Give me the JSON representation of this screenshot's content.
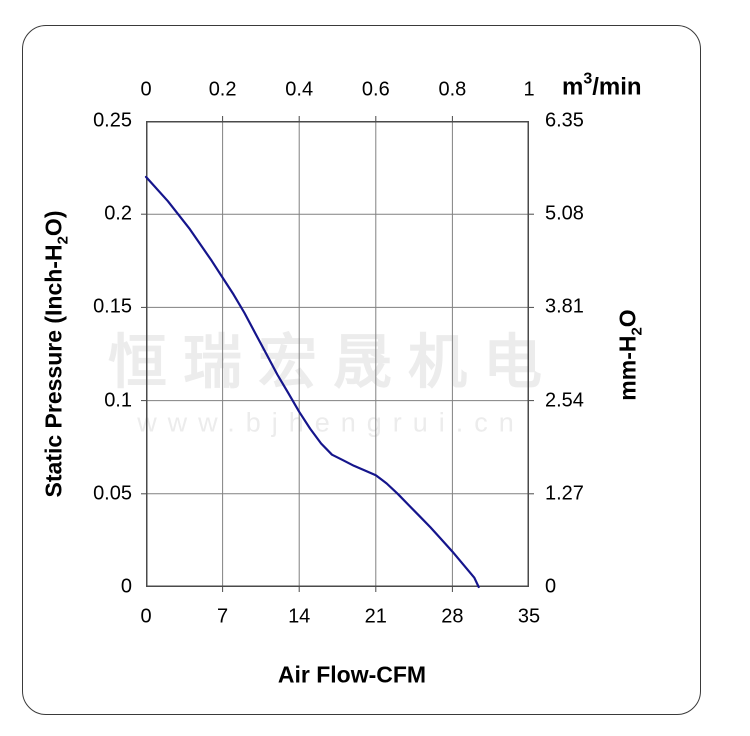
{
  "page": {
    "background": "#ffffff",
    "frame_border_color": "#3a3a3a"
  },
  "watermark": {
    "line1": "恒瑞宏晟机电",
    "line2": "www.bjhengrui.cn",
    "color": "#ececec"
  },
  "colors": {
    "grid": "#818181",
    "plot_border": "#4a4a4a",
    "curve": "#15158c",
    "text": "#000000"
  },
  "chart_data": {
    "type": "line",
    "title": "",
    "grid": true,
    "axes": {
      "top": {
        "unit_parts": {
          "base": "m",
          "sup": "3",
          "rest": "/min"
        },
        "ticks": [
          "0",
          "0.2",
          "0.4",
          "0.6",
          "0.8",
          "1"
        ],
        "range": [
          0,
          1
        ]
      },
      "bottom": {
        "label": "Air Flow-CFM",
        "ticks": [
          "0",
          "7",
          "14",
          "21",
          "28",
          "35"
        ],
        "range": [
          0,
          35
        ]
      },
      "left": {
        "label_parts": {
          "pre": "Static Pressure (Inch-H",
          "sub": "2",
          "post": "O)"
        },
        "ticks": [
          "0.25",
          "0.2",
          "0.15",
          "0.1",
          "0.05",
          "0"
        ],
        "range": [
          0,
          0.25
        ]
      },
      "right": {
        "label_parts": {
          "pre": "mm-H",
          "sub": "2",
          "post": "O"
        },
        "ticks": [
          "6.35",
          "5.08",
          "3.81",
          "2.54",
          "1.27",
          "0"
        ],
        "range": [
          0,
          6.35
        ]
      }
    },
    "series": [
      {
        "name": "static-pressure-vs-airflow",
        "color": "#15158c",
        "stroke_width": 2.2,
        "x_unit": "CFM",
        "y_unit": "Inch-H2O",
        "points": [
          [
            0,
            0.22
          ],
          [
            2,
            0.207
          ],
          [
            4,
            0.192
          ],
          [
            6,
            0.175
          ],
          [
            7,
            0.166
          ],
          [
            8,
            0.157
          ],
          [
            9,
            0.147
          ],
          [
            10,
            0.136
          ],
          [
            11,
            0.125
          ],
          [
            12,
            0.114
          ],
          [
            13,
            0.104
          ],
          [
            14,
            0.094
          ],
          [
            15,
            0.085
          ],
          [
            16,
            0.077
          ],
          [
            17,
            0.071
          ],
          [
            18,
            0.068
          ],
          [
            19,
            0.065
          ],
          [
            20,
            0.0625
          ],
          [
            21,
            0.06
          ],
          [
            22,
            0.0555
          ],
          [
            23,
            0.05
          ],
          [
            24,
            0.044
          ],
          [
            25,
            0.038
          ],
          [
            26,
            0.032
          ],
          [
            27,
            0.0255
          ],
          [
            28,
            0.019
          ],
          [
            29,
            0.012
          ],
          [
            30,
            0.005
          ],
          [
            30.4,
            0
          ]
        ]
      }
    ]
  }
}
